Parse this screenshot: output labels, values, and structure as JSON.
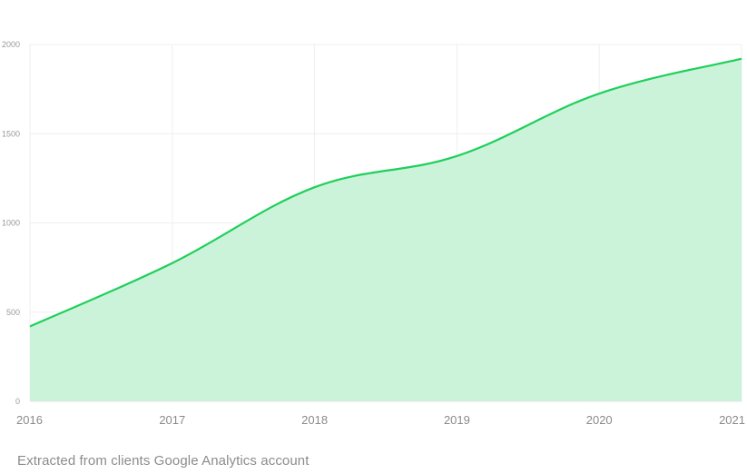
{
  "chart_data": {
    "type": "area",
    "x": [
      "2016",
      "2017",
      "2018",
      "2019",
      "2020",
      "2021"
    ],
    "series": [
      {
        "values": [
          420,
          775,
          1200,
          1375,
          1725,
          1920
        ]
      }
    ],
    "ylim": [
      0,
      2000
    ],
    "yticks": [
      "0",
      "500",
      "1000",
      "1500",
      "2000"
    ],
    "xticks": [
      "2016",
      "2017",
      "2018",
      "2019",
      "2020",
      "2021"
    ],
    "grid": true,
    "line_color": "#1fcf5b",
    "fill_color": "#cbf3d9"
  },
  "caption": "Extracted from clients Google Analytics account"
}
